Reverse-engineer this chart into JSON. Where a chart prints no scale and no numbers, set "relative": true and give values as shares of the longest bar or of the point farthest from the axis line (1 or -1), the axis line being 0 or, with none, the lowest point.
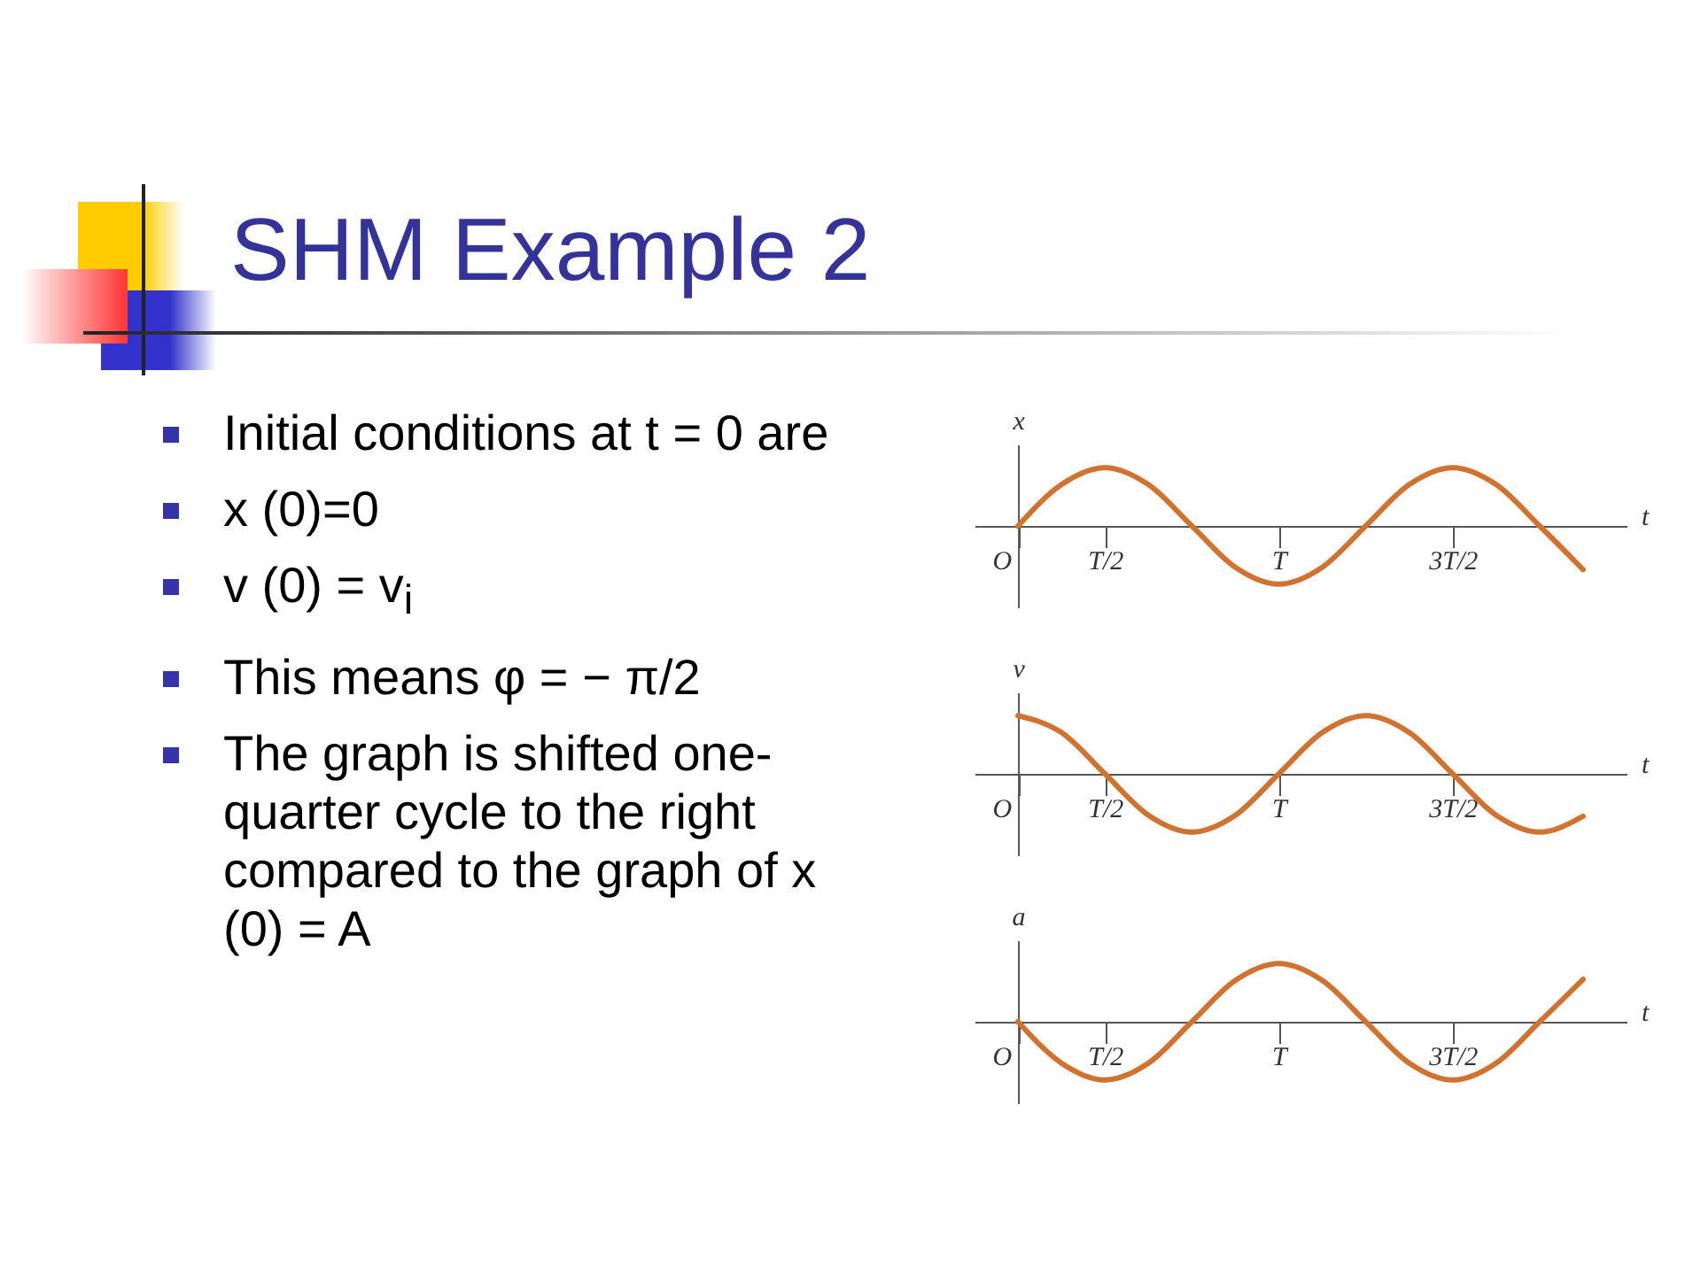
{
  "chart_data": [
    {
      "type": "other",
      "title": "SHM Example 2",
      "annotations": [
        "Initial conditions at t = 0 are",
        "x (0)=0",
        "v (0) = v$_{i}$",
        "This means φ = − π/2",
        "The graph is shifted one-quarter cycle to the right compared to the graph of x (0) = A"
      ]
    },
    {
      "type": "line",
      "relative": true,
      "xlabel": "t",
      "ylabel": "x",
      "categories": [
        "O",
        null,
        "T/2",
        null,
        null,
        null,
        "T",
        null,
        null,
        null,
        "3T/2",
        null,
        null,
        null
      ],
      "series": [
        {
          "color": "#d2722f",
          "values": [
            0,
            0.71,
            1,
            0.71,
            0,
            -0.71,
            -1,
            -0.71,
            0,
            0.71,
            1,
            0.71,
            0,
            -0.75
          ]
        }
      ]
    },
    {
      "type": "line",
      "relative": true,
      "xlabel": "t",
      "ylabel": "v",
      "categories": [
        "O",
        null,
        "T/2",
        null,
        null,
        null,
        "T",
        null,
        null,
        null,
        "3T/2",
        null,
        null,
        null
      ],
      "series": [
        {
          "color": "#d2722f",
          "values": [
            1,
            0.71,
            0,
            -0.71,
            -1,
            -0.71,
            0,
            0.71,
            1,
            0.71,
            0,
            -0.71,
            -1,
            -0.73
          ]
        }
      ]
    },
    {
      "type": "line",
      "relative": true,
      "xlabel": "t",
      "ylabel": "a",
      "categories": [
        "O",
        null,
        "T/2",
        null,
        null,
        null,
        "T",
        null,
        null,
        null,
        "3T/2",
        null,
        null,
        null
      ],
      "series": [
        {
          "color": "#d2722f",
          "values": [
            0,
            -0.71,
            -1,
            -0.71,
            0,
            0.71,
            1,
            0.71,
            0,
            -0.71,
            -1,
            -0.71,
            0,
            0.73
          ]
        }
      ]
    }
  ]
}
